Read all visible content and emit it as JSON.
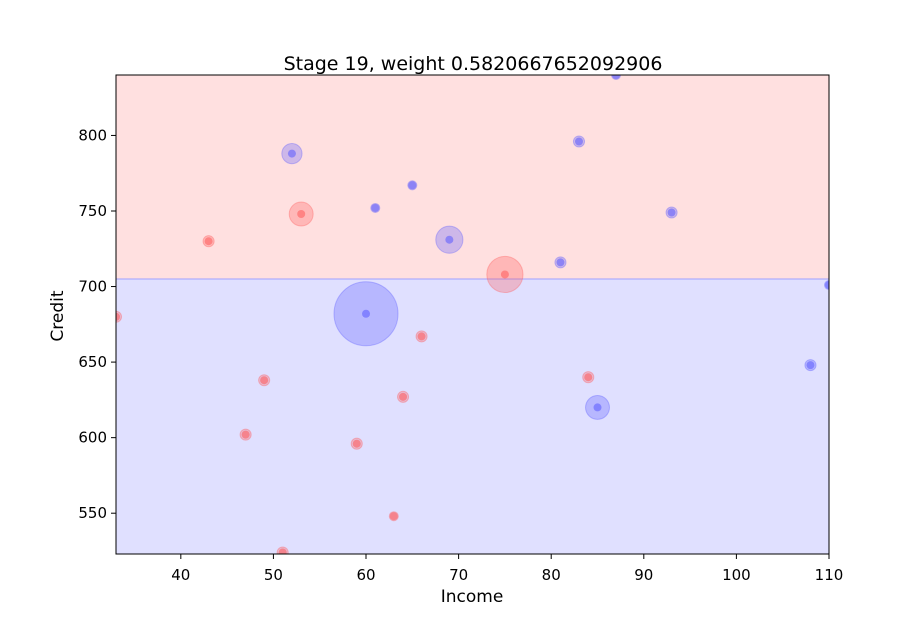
{
  "chart_data": {
    "type": "scatter",
    "title": "Stage 19, weight 0.5820667652092906",
    "xlabel": "Income",
    "ylabel": "Credit",
    "xlim": [
      33,
      110
    ],
    "ylim": [
      523,
      840
    ],
    "xticks": [
      40,
      50,
      60,
      70,
      80,
      90,
      100,
      110
    ],
    "yticks": [
      550,
      600,
      650,
      700,
      750,
      800
    ],
    "threshold": {
      "axis": "y",
      "value": 705,
      "above_region_color": "#ffe0e0",
      "below_region_color": "#e0e0ff"
    },
    "colors": {
      "red_class": "#ff5a5a",
      "blue_class": "#5a5aff"
    },
    "points": [
      {
        "x": 87,
        "y": 840,
        "cls": "blue",
        "w": 0.02
      },
      {
        "x": 52,
        "y": 788,
        "cls": "blue",
        "w": 0.1
      },
      {
        "x": 83,
        "y": 796,
        "cls": "blue",
        "w": 0.03
      },
      {
        "x": 65,
        "y": 767,
        "cls": "blue",
        "w": 0.02
      },
      {
        "x": 61,
        "y": 752,
        "cls": "blue",
        "w": 0.02
      },
      {
        "x": 53,
        "y": 748,
        "cls": "red",
        "w": 0.14
      },
      {
        "x": 93,
        "y": 749,
        "cls": "blue",
        "w": 0.03
      },
      {
        "x": 43,
        "y": 730,
        "cls": "red",
        "w": 0.03
      },
      {
        "x": 69,
        "y": 731,
        "cls": "blue",
        "w": 0.18
      },
      {
        "x": 81,
        "y": 716,
        "cls": "blue",
        "w": 0.03
      },
      {
        "x": 75,
        "y": 708,
        "cls": "red",
        "w": 0.32
      },
      {
        "x": 110,
        "y": 701,
        "cls": "blue",
        "w": 0.02
      },
      {
        "x": 33,
        "y": 680,
        "cls": "red",
        "w": 0.03
      },
      {
        "x": 60,
        "y": 682,
        "cls": "blue",
        "w": 1.0
      },
      {
        "x": 66,
        "y": 667,
        "cls": "red",
        "w": 0.03
      },
      {
        "x": 108,
        "y": 648,
        "cls": "blue",
        "w": 0.03
      },
      {
        "x": 49,
        "y": 638,
        "cls": "red",
        "w": 0.03
      },
      {
        "x": 84,
        "y": 640,
        "cls": "red",
        "w": 0.03
      },
      {
        "x": 64,
        "y": 627,
        "cls": "red",
        "w": 0.03
      },
      {
        "x": 85,
        "y": 620,
        "cls": "blue",
        "w": 0.14
      },
      {
        "x": 47,
        "y": 602,
        "cls": "red",
        "w": 0.03
      },
      {
        "x": 59,
        "y": 596,
        "cls": "red",
        "w": 0.03
      },
      {
        "x": 63,
        "y": 548,
        "cls": "red",
        "w": 0.02
      },
      {
        "x": 51,
        "y": 524,
        "cls": "red",
        "w": 0.03
      }
    ]
  }
}
